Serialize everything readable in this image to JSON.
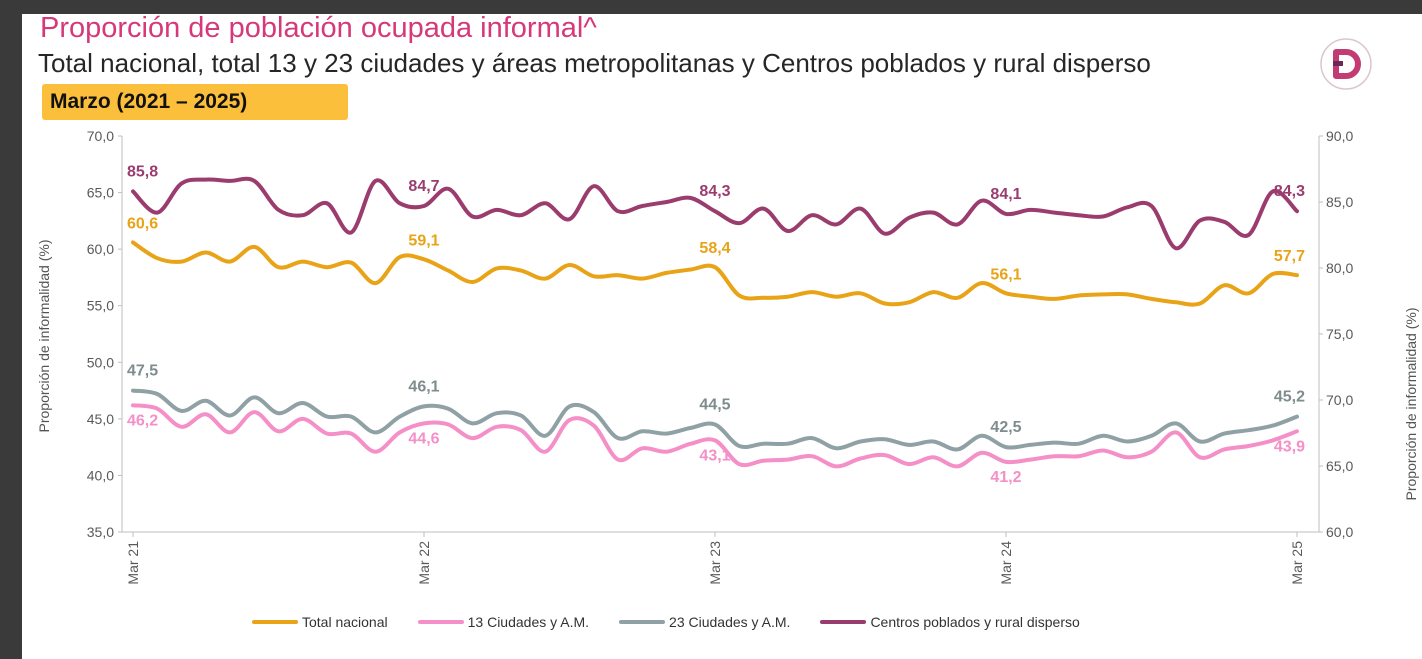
{
  "header": {
    "title": "Proporción de población ocupada informal^",
    "subtitle": "Total nacional, total 13 y 23 ciudades y áreas metropolitanas y Centros poblados y rural disperso",
    "period_badge": "Marzo (2021 – 2025)"
  },
  "colors": {
    "accent": "#d6397a",
    "badge": "#fbbf3c",
    "total": "#e8a317",
    "c13": "#f48fc7",
    "c23": "#8fa1a4",
    "rural": "#9b3c6f"
  },
  "chart_data": {
    "type": "line",
    "title": "Proporción de población ocupada informal^",
    "ylabel_left": "Proporción de informalidad (%)",
    "ylabel_right": "Proporción de informalidad (%)",
    "ylim_left": [
      35,
      70
    ],
    "ylim_right": [
      60,
      90
    ],
    "yticks_left": [
      "70,0",
      "65,0",
      "60,0",
      "55,0",
      "50,0",
      "45,0",
      "40,0",
      "35,0"
    ],
    "yticks_right": [
      "90,0",
      "85,0",
      "80,0",
      "75,0",
      "70,0",
      "65,0",
      "60,0"
    ],
    "x_tick_labels": [
      "Mar 21",
      "Mar 22",
      "Mar 23",
      "Mar 24",
      "Mar 25"
    ],
    "x_tick_index": [
      0,
      12,
      24,
      36,
      48
    ],
    "series": [
      {
        "name": "Total nacional",
        "axis": "left",
        "color": "#e8a317",
        "values": [
          60.6,
          59.2,
          58.9,
          59.7,
          58.9,
          60.2,
          58.4,
          58.9,
          58.4,
          58.8,
          57.0,
          59.3,
          59.1,
          58.1,
          57.1,
          58.3,
          58.1,
          57.4,
          58.6,
          57.6,
          57.7,
          57.4,
          57.9,
          58.2,
          58.4,
          55.9,
          55.7,
          55.8,
          56.2,
          55.8,
          56.1,
          55.2,
          55.3,
          56.2,
          55.7,
          57.0,
          56.1,
          55.8,
          55.6,
          55.9,
          56.0,
          56.0,
          55.6,
          55.3,
          55.2,
          56.8,
          56.1,
          57.8,
          57.7
        ],
        "labels": [
          {
            "index": 0,
            "text": "60,6"
          },
          {
            "index": 12,
            "text": "59,1"
          },
          {
            "index": 24,
            "text": "58,4"
          },
          {
            "index": 36,
            "text": "56,1"
          },
          {
            "index": 48,
            "text": "57,7"
          }
        ]
      },
      {
        "name": "13 Ciudades y A.M.",
        "axis": "left",
        "color": "#f48fc7",
        "values": [
          46.2,
          45.9,
          44.3,
          45.4,
          43.8,
          45.6,
          43.9,
          45.0,
          43.7,
          43.7,
          42.1,
          43.8,
          44.6,
          44.5,
          43.3,
          44.3,
          44.0,
          42.1,
          44.9,
          44.4,
          41.4,
          42.4,
          42.1,
          42.8,
          43.1,
          41.0,
          41.3,
          41.4,
          41.7,
          40.8,
          41.5,
          41.8,
          41.0,
          41.6,
          40.8,
          42.0,
          41.2,
          41.4,
          41.7,
          41.7,
          42.2,
          41.6,
          42.1,
          43.8,
          41.6,
          42.3,
          42.6,
          43.1,
          43.9
        ],
        "labels": [
          {
            "index": 0,
            "text": "46,2"
          },
          {
            "index": 12,
            "text": "44,6"
          },
          {
            "index": 24,
            "text": "43,1"
          },
          {
            "index": 36,
            "text": "41,2"
          },
          {
            "index": 48,
            "text": "43,9"
          }
        ]
      },
      {
        "name": "23 Ciudades y A.M.",
        "axis": "left",
        "color": "#8fa1a4",
        "values": [
          47.5,
          47.2,
          45.7,
          46.6,
          45.3,
          46.9,
          45.5,
          46.4,
          45.2,
          45.2,
          43.8,
          45.2,
          46.1,
          45.9,
          44.6,
          45.5,
          45.3,
          43.5,
          46.1,
          45.6,
          43.3,
          43.9,
          43.7,
          44.2,
          44.5,
          42.6,
          42.8,
          42.8,
          43.3,
          42.4,
          43.0,
          43.2,
          42.7,
          43.0,
          42.3,
          43.5,
          42.5,
          42.7,
          42.9,
          42.8,
          43.5,
          43.0,
          43.5,
          44.6,
          43.0,
          43.7,
          44.0,
          44.4,
          45.2
        ],
        "labels": [
          {
            "index": 0,
            "text": "47,5"
          },
          {
            "index": 12,
            "text": "46,1"
          },
          {
            "index": 24,
            "text": "44,5"
          },
          {
            "index": 36,
            "text": "42,5"
          },
          {
            "index": 48,
            "text": "45,2"
          }
        ]
      },
      {
        "name": "Centros poblados y rural disperso",
        "axis": "right",
        "color": "#9b3c6f",
        "values": [
          85.8,
          84.2,
          86.4,
          86.7,
          86.6,
          86.6,
          84.4,
          84.0,
          84.9,
          82.7,
          86.6,
          84.9,
          84.7,
          86.0,
          83.9,
          84.4,
          84.0,
          84.9,
          83.7,
          86.2,
          84.3,
          84.7,
          85.0,
          85.3,
          84.3,
          83.4,
          84.5,
          82.8,
          84.0,
          83.3,
          84.5,
          82.6,
          83.8,
          84.2,
          83.3,
          85.1,
          84.1,
          84.4,
          84.2,
          84.0,
          83.9,
          84.6,
          84.7,
          81.5,
          83.6,
          83.5,
          82.5,
          85.8,
          84.3
        ],
        "labels": [
          {
            "index": 0,
            "text": "85,8"
          },
          {
            "index": 12,
            "text": "84,7"
          },
          {
            "index": 24,
            "text": "84,3"
          },
          {
            "index": 36,
            "text": "84,1"
          },
          {
            "index": 48,
            "text": "84,3"
          }
        ]
      }
    ],
    "legend_position": "bottom"
  }
}
